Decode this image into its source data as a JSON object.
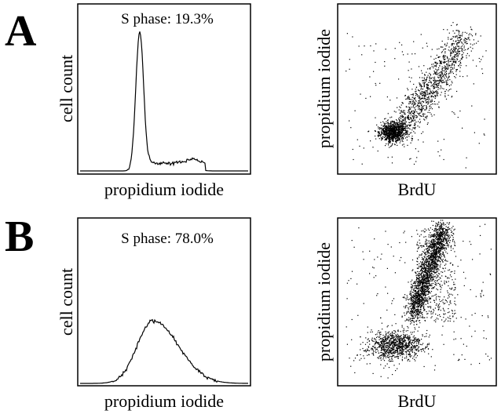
{
  "panels": [
    {
      "label": "A",
      "histogram": {
        "annotation": "S phase: 19.3%",
        "y_label": "cell count",
        "x_label": "propidium iodide"
      },
      "scatter": {
        "y_label": "propidium iodide",
        "x_label": "BrdU"
      }
    },
    {
      "label": "B",
      "histogram": {
        "annotation": "S phase: 78.0%",
        "y_label": "cell count",
        "x_label": "propidium iodide"
      },
      "scatter": {
        "y_label": "propidium iodide",
        "x_label": "BrdU"
      }
    }
  ]
}
